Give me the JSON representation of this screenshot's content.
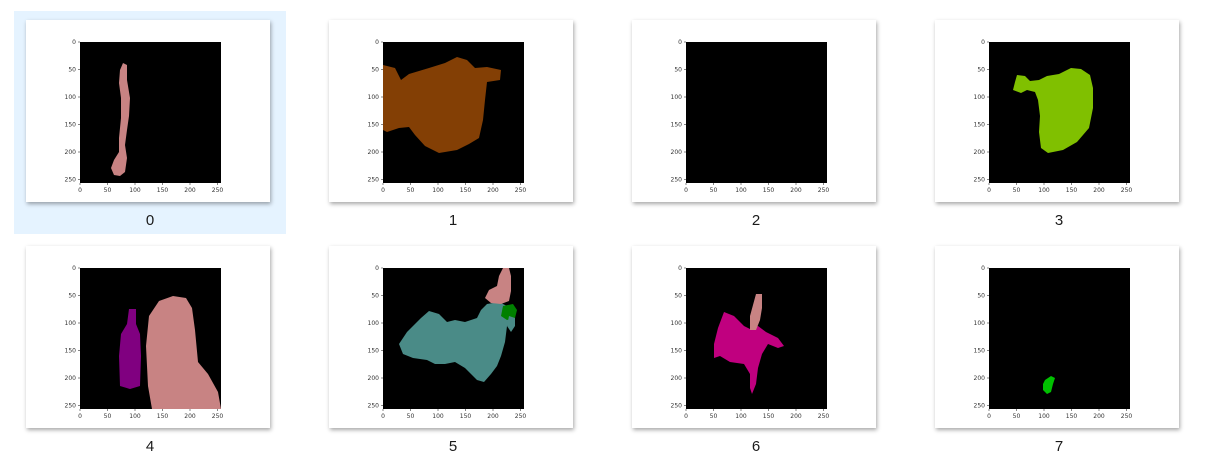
{
  "thumbnails": [
    {
      "label": "0",
      "selected": true,
      "regions": [
        {
          "color": "#c88383",
          "shape": "thin-vertical-strip"
        }
      ]
    },
    {
      "label": "1",
      "selected": false,
      "regions": [
        {
          "color": "#833f05",
          "shape": "large-blob"
        }
      ]
    },
    {
      "label": "2",
      "selected": false,
      "regions": []
    },
    {
      "label": "3",
      "selected": false,
      "regions": [
        {
          "color": "#80c000",
          "shape": "blob"
        }
      ]
    },
    {
      "label": "4",
      "selected": false,
      "regions": [
        {
          "color": "#800080",
          "shape": "bottle"
        },
        {
          "color": "#c88383",
          "shape": "large-rounded"
        }
      ]
    },
    {
      "label": "5",
      "selected": false,
      "regions": [
        {
          "color": "#4a8b87",
          "shape": "wide-blob"
        },
        {
          "color": "#c88383",
          "shape": "small"
        },
        {
          "color": "#008000",
          "shape": "small"
        }
      ]
    },
    {
      "label": "6",
      "selected": false,
      "regions": [
        {
          "color": "#c0007f",
          "shape": "splash"
        },
        {
          "color": "#c88383",
          "shape": "spike"
        }
      ]
    },
    {
      "label": "7",
      "selected": false,
      "regions": [
        {
          "color": "#00c000",
          "shape": "tiny-dot"
        }
      ]
    }
  ],
  "axis_ticks": {
    "x": [
      "0",
      "50",
      "100",
      "150",
      "200",
      "250"
    ],
    "y": [
      "0",
      "50",
      "100",
      "150",
      "200",
      "250"
    ]
  }
}
